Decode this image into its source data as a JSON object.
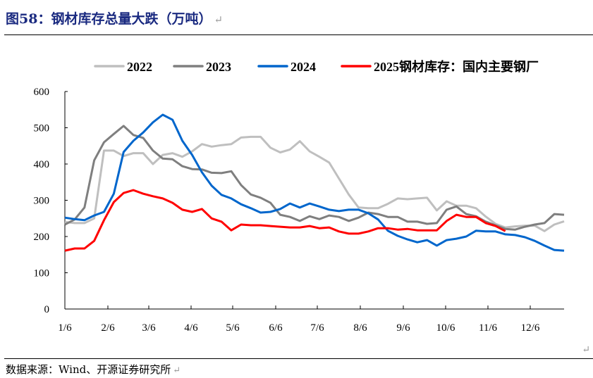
{
  "title": "图58：钢材库存总量大跌（万吨）",
  "return_mark": "↵",
  "footer": "数据来源：Wind、开源证券研究所",
  "chart_data": {
    "type": "line",
    "title": "钢材库存总量大跌（万吨）",
    "xlabel": "",
    "ylabel": "",
    "ylim": [
      0,
      600
    ],
    "yticks": [
      0,
      100,
      200,
      300,
      400,
      500,
      600
    ],
    "xtick_labels": [
      "1/6",
      "2/6",
      "3/6",
      "4/6",
      "5/6",
      "6/6",
      "7/6",
      "8/6",
      "9/6",
      "10/6",
      "11/6",
      "12/6"
    ],
    "x_unit": "week of year (0 = 1/6)",
    "legend_placement": "top",
    "grid": false,
    "series": [
      {
        "name": "2022",
        "color": "#bfbfbf",
        "values": [
          240,
          237,
          237,
          250,
          437,
          437,
          422,
          430,
          430,
          400,
          425,
          430,
          420,
          435,
          455,
          448,
          452,
          455,
          473,
          475,
          475,
          445,
          432,
          440,
          463,
          435,
          420,
          404,
          360,
          316,
          280,
          278,
          278,
          290,
          305,
          303,
          305,
          307,
          272,
          297,
          285,
          285,
          278,
          255,
          235,
          225,
          228,
          230,
          230,
          215,
          233,
          242
        ]
      },
      {
        "name": "2023",
        "color": "#7f7f7f",
        "values": [
          233,
          247,
          280,
          410,
          460,
          483,
          505,
          480,
          472,
          437,
          415,
          413,
          394,
          386,
          385,
          376,
          375,
          380,
          342,
          316,
          307,
          293,
          260,
          254,
          243,
          256,
          248,
          258,
          254,
          243,
          252,
          266,
          262,
          254,
          254,
          241,
          241,
          235,
          237,
          274,
          283,
          262,
          256,
          241,
          231,
          221,
          219,
          227,
          233,
          237,
          262,
          260
        ]
      },
      {
        "name": "2024",
        "color": "#0066cc",
        "values": [
          252,
          248,
          245,
          258,
          268,
          318,
          433,
          464,
          487,
          515,
          536,
          522,
          464,
          425,
          377,
          340,
          315,
          305,
          289,
          278,
          266,
          268,
          276,
          291,
          280,
          291,
          283,
          274,
          270,
          274,
          274,
          264,
          247,
          216,
          202,
          192,
          184,
          190,
          175,
          190,
          194,
          200,
          216,
          214,
          214,
          206,
          204,
          198,
          188,
          175,
          163,
          161
        ]
      },
      {
        "name": "2025钢材库存：国内主要钢厂",
        "color": "#ff0000",
        "values": [
          161,
          167,
          167,
          188,
          245,
          295,
          320,
          328,
          318,
          311,
          305,
          293,
          274,
          268,
          276,
          250,
          241,
          217,
          233,
          231,
          231,
          229,
          227,
          225,
          225,
          229,
          223,
          225,
          214,
          208,
          208,
          214,
          223,
          223,
          219,
          221,
          217,
          217,
          217,
          243,
          260,
          254,
          254,
          237,
          229,
          215
        ]
      }
    ]
  }
}
